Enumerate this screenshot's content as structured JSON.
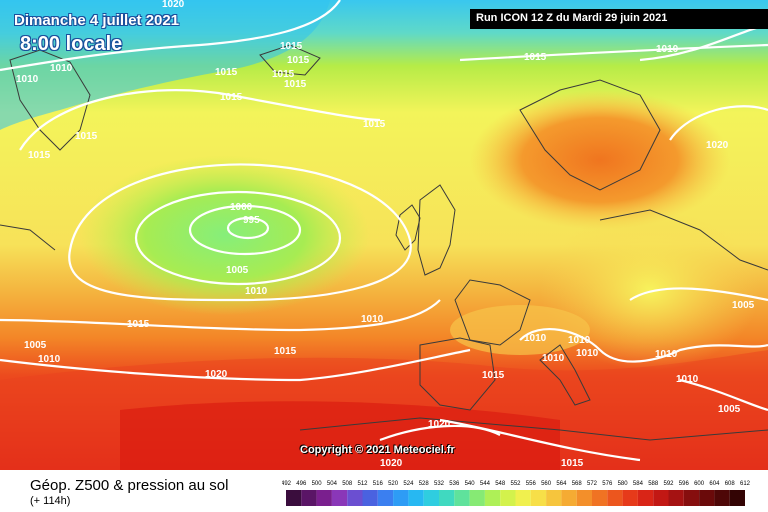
{
  "header": {
    "date": "Dimanche 4 juillet 2021",
    "time": "8:00 locale",
    "run": "Run ICON 12 Z du Mardi 29 juin 2021"
  },
  "copyright": "Copyright © 2021 Meteociel.fr",
  "footer": {
    "title": "Géop. Z500 & pression au sol",
    "lead": "(+ 114h)"
  },
  "colors": {
    "low": "#66d4f0",
    "mid": "#f7f36a",
    "high": "#e8341c",
    "isobar": "#ffffff"
  },
  "isobar_labels": [
    "1020",
    "1015",
    "1015",
    "1010",
    "1010",
    "1015",
    "1015",
    "1015",
    "1015",
    "1015",
    "1015",
    "1015",
    "1015",
    "1015",
    "1015",
    "1000",
    "995",
    "1005",
    "1010",
    "1010",
    "1015",
    "1005",
    "1010",
    "1020",
    "1015",
    "1020",
    "1015",
    "1010",
    "1010",
    "1010",
    "1010",
    "1010",
    "1005",
    "1010",
    "1010",
    "1005",
    "1020",
    "1015",
    "1020"
  ],
  "scale_ticks": [
    "492",
    "496",
    "500",
    "504",
    "508",
    "512",
    "516",
    "520",
    "524",
    "528",
    "532",
    "536",
    "540",
    "544",
    "548",
    "552",
    "556",
    "560",
    "564",
    "568",
    "572",
    "576",
    "580",
    "584",
    "588",
    "592",
    "596",
    "600",
    "604",
    "608",
    "612"
  ]
}
